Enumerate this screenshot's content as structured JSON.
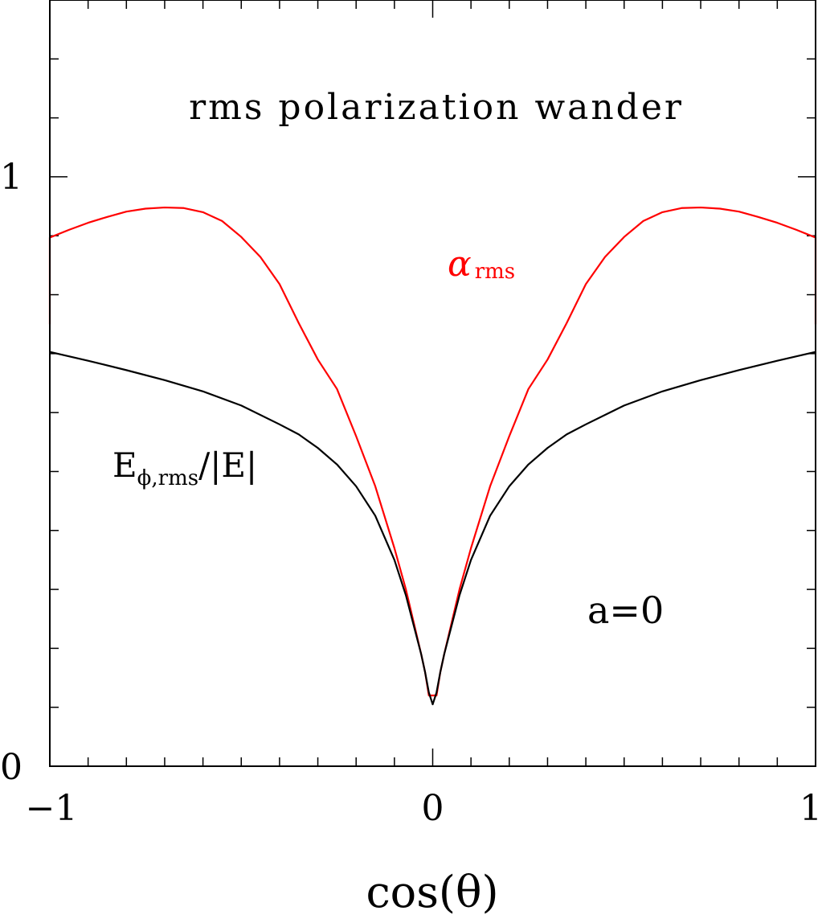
{
  "chart_data": {
    "type": "line",
    "title": "rms polarization wander",
    "xlabel": "cos(θ)",
    "ylabel": "",
    "xlim": [
      -1,
      1
    ],
    "ylim": [
      0,
      1.3
    ],
    "x_tick_labels": [
      {
        "value": -1,
        "label": "−1"
      },
      {
        "value": 0,
        "label": "0"
      },
      {
        "value": 1,
        "label": "1"
      }
    ],
    "y_tick_labels": [
      {
        "value": 0,
        "label": "0"
      },
      {
        "value": 1,
        "label": "1"
      }
    ],
    "annotation": "a=0",
    "series": [
      {
        "name": "α_rms",
        "label_main": "α",
        "label_sub": "rms",
        "color": "#ff0000",
        "x": [
          -1,
          -1,
          -0.95,
          -0.9,
          -0.85,
          -0.8,
          -0.75,
          -0.7,
          -0.65,
          -0.6,
          -0.55,
          -0.5,
          -0.45,
          -0.4,
          -0.35,
          -0.3,
          -0.25,
          -0.2,
          -0.15,
          -0.1,
          -0.07,
          -0.05,
          -0.03,
          -0.02,
          -0.01,
          0,
          0.01,
          0.02,
          0.03,
          0.05,
          0.07,
          0.1,
          0.15,
          0.2,
          0.25,
          0.3,
          0.35,
          0.4,
          0.45,
          0.5,
          0.55,
          0.6,
          0.65,
          0.7,
          0.75,
          0.8,
          0.85,
          0.9,
          0.95,
          1,
          1
        ],
        "y": [
          0.75,
          0.897,
          0.91,
          0.922,
          0.932,
          0.941,
          0.946,
          0.948,
          0.947,
          0.94,
          0.925,
          0.898,
          0.864,
          0.818,
          0.752,
          0.69,
          0.64,
          0.56,
          0.475,
          0.37,
          0.3,
          0.245,
          0.19,
          0.16,
          0.12,
          0.12,
          0.12,
          0.16,
          0.19,
          0.245,
          0.3,
          0.37,
          0.475,
          0.56,
          0.64,
          0.69,
          0.752,
          0.818,
          0.864,
          0.898,
          0.925,
          0.94,
          0.947,
          0.948,
          0.946,
          0.941,
          0.932,
          0.922,
          0.91,
          0.897,
          0.75
        ]
      },
      {
        "name": "E_φ,rms/|E|",
        "label_main": "E",
        "label_sub": "ϕ,rms",
        "label_tail": "/|E|",
        "color": "#000000",
        "x": [
          -1,
          -0.9,
          -0.8,
          -0.7,
          -0.6,
          -0.5,
          -0.4,
          -0.35,
          -0.3,
          -0.25,
          -0.2,
          -0.15,
          -0.1,
          -0.07,
          -0.05,
          -0.03,
          -0.02,
          -0.01,
          0,
          0.01,
          0.02,
          0.03,
          0.05,
          0.07,
          0.1,
          0.15,
          0.2,
          0.25,
          0.3,
          0.35,
          0.4,
          0.5,
          0.6,
          0.7,
          0.8,
          0.9,
          1
        ],
        "y": [
          0.703,
          0.688,
          0.672,
          0.655,
          0.636,
          0.612,
          0.58,
          0.563,
          0.54,
          0.512,
          0.475,
          0.425,
          0.35,
          0.29,
          0.24,
          0.19,
          0.16,
          0.125,
          0.105,
          0.125,
          0.16,
          0.19,
          0.24,
          0.29,
          0.35,
          0.425,
          0.475,
          0.512,
          0.54,
          0.563,
          0.58,
          0.612,
          0.636,
          0.655,
          0.672,
          0.688,
          0.703
        ]
      }
    ],
    "grid": false,
    "legend": "inline-labels"
  }
}
